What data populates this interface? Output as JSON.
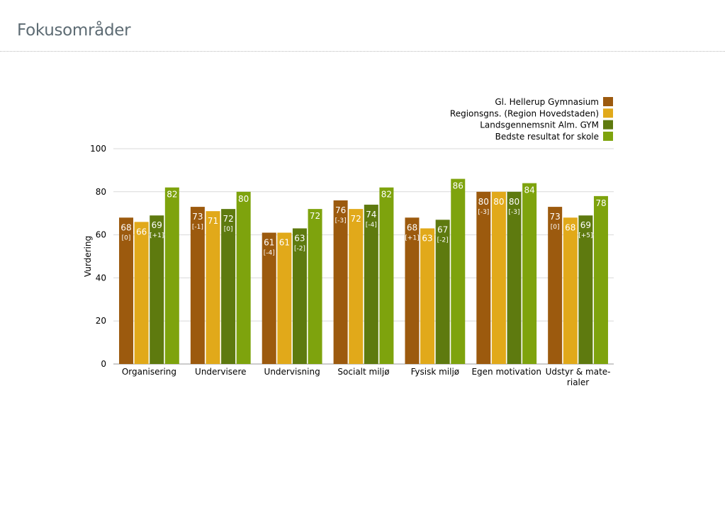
{
  "page": {
    "title": "Fokusområder"
  },
  "chart_data": {
    "type": "bar",
    "ylabel": "Vurdering",
    "xlabel": "",
    "ylim": [
      0,
      100
    ],
    "yticks": [
      0,
      20,
      40,
      60,
      80,
      100
    ],
    "grid": true,
    "legend_position": "top-right",
    "categories": [
      "Organisering",
      "Undervisere",
      "Undervisning",
      "Socialt miljø",
      "Fysisk miljø",
      "Egen motivation",
      "Udstyr & mate- rialer"
    ],
    "category_lines": [
      [
        "Organisering"
      ],
      [
        "Undervisere"
      ],
      [
        "Undervisning"
      ],
      [
        "Socialt miljø"
      ],
      [
        "Fysisk miljø"
      ],
      [
        "Egen motivation"
      ],
      [
        "Udstyr & mate-",
        "rialer"
      ]
    ],
    "series": [
      {
        "name": "Gl. Hellerup Gymnasium",
        "color": "#9c5a0e",
        "values": [
          68,
          73,
          61,
          76,
          68,
          80,
          73
        ],
        "changes": [
          "[0]",
          "[-1]",
          "[-4]",
          "[-3]",
          "[+1]",
          "[-3]",
          "[0]"
        ]
      },
      {
        "name": "Regionsgns. (Region Hovedstaden)",
        "color": "#e1a91a",
        "values": [
          66,
          71,
          61,
          72,
          63,
          80,
          68
        ],
        "changes": [
          "",
          "",
          "",
          "",
          "",
          "",
          ""
        ]
      },
      {
        "name": "Landsgennemsnit Alm. GYM",
        "color": "#5e7a0f",
        "values": [
          69,
          72,
          63,
          74,
          67,
          80,
          69
        ],
        "changes": [
          "[+1]",
          "[0]",
          "[-2]",
          "[-4]",
          "[-2]",
          "[-3]",
          "[+5]"
        ]
      },
      {
        "name": "Bedste resultat for skole",
        "color": "#7ea30d",
        "values": [
          82,
          80,
          72,
          82,
          86,
          84,
          78
        ],
        "changes": [
          "",
          "",
          "",
          "",
          "",
          "",
          ""
        ]
      }
    ]
  }
}
